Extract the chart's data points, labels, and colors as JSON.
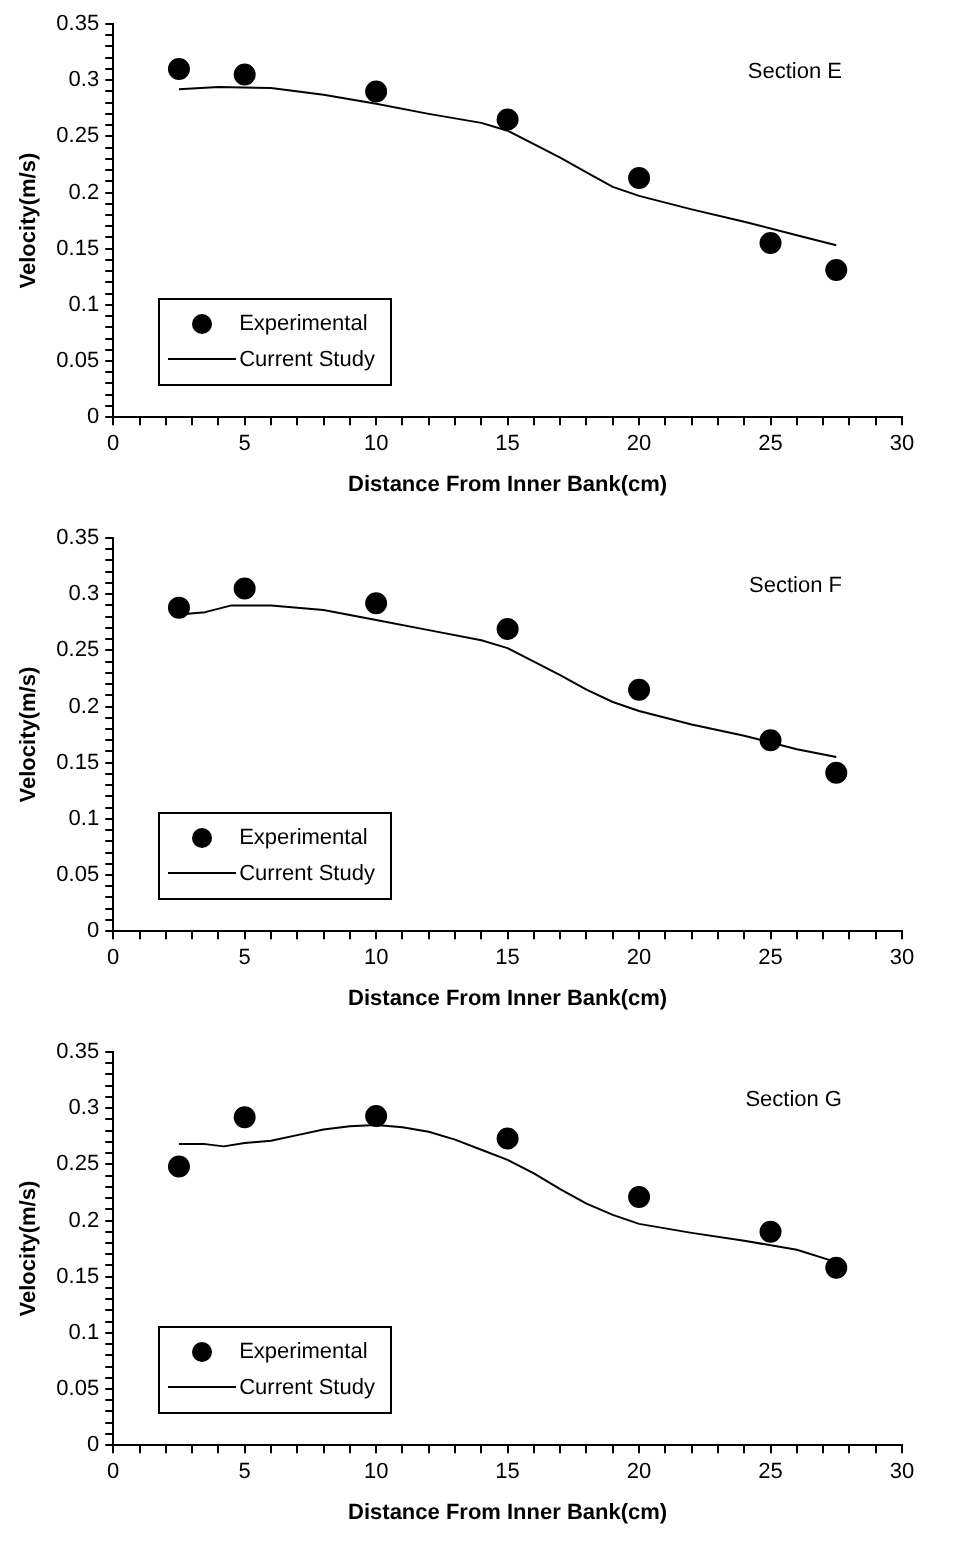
{
  "chart_data": [
    {
      "type": "scatter",
      "xlabel": "Distance From Inner Bank(cm)",
      "ylabel": "Velocity(m/s)",
      "annotations": [
        "Section E"
      ],
      "legend": "bottom left",
      "grid": false,
      "xlim": [
        0,
        30
      ],
      "ylim": [
        0,
        0.35
      ],
      "xticks": [
        0,
        {
          "value": 1,
          "label": null
        },
        {
          "value": 2,
          "label": null
        },
        {
          "value": 3,
          "label": null
        },
        {
          "value": 4,
          "label": null
        },
        5,
        {
          "value": 6,
          "label": null
        },
        {
          "value": 7,
          "label": null
        },
        {
          "value": 8,
          "label": null
        },
        {
          "value": 9,
          "label": null
        },
        10,
        {
          "value": 11,
          "label": null
        },
        {
          "value": 12,
          "label": null
        },
        {
          "value": 13,
          "label": null
        },
        {
          "value": 14,
          "label": null
        },
        15,
        {
          "value": 16,
          "label": null
        },
        {
          "value": 17,
          "label": null
        },
        {
          "value": 18,
          "label": null
        },
        {
          "value": 19,
          "label": null
        },
        20,
        {
          "value": 21,
          "label": null
        },
        {
          "value": 22,
          "label": null
        },
        {
          "value": 23,
          "label": null
        },
        {
          "value": 24,
          "label": null
        },
        25,
        {
          "value": 26,
          "label": null
        },
        {
          "value": 27,
          "label": null
        },
        {
          "value": 28,
          "label": null
        },
        {
          "value": 29,
          "label": null
        },
        30
      ],
      "yticks": [
        0,
        {
          "value": 0.01,
          "label": null
        },
        {
          "value": 0.02,
          "label": null
        },
        {
          "value": 0.03,
          "label": null
        },
        {
          "value": 0.04,
          "label": null
        },
        0.05,
        {
          "value": 0.06,
          "label": null
        },
        {
          "value": 0.07,
          "label": null
        },
        {
          "value": 0.08,
          "label": null
        },
        {
          "value": 0.09,
          "label": null
        },
        0.1,
        {
          "value": 0.11,
          "label": null
        },
        {
          "value": 0.12,
          "label": null
        },
        {
          "value": 0.13,
          "label": null
        },
        {
          "value": 0.14,
          "label": null
        },
        0.15,
        {
          "value": 0.16,
          "label": null
        },
        {
          "value": 0.17,
          "label": null
        },
        {
          "value": 0.18,
          "label": null
        },
        {
          "value": 0.19,
          "label": null
        },
        0.2,
        {
          "value": 0.21,
          "label": null
        },
        {
          "value": 0.22,
          "label": null
        },
        {
          "value": 0.23,
          "label": null
        },
        {
          "value": 0.24,
          "label": null
        },
        0.25,
        {
          "value": 0.26,
          "label": null
        },
        {
          "value": 0.27,
          "label": null
        },
        {
          "value": 0.28,
          "label": null
        },
        {
          "value": 0.29,
          "label": null
        },
        0.3,
        {
          "value": 0.31,
          "label": null
        },
        {
          "value": 0.32,
          "label": null
        },
        {
          "value": 0.33,
          "label": null
        },
        {
          "value": 0.34,
          "label": null
        },
        0.35
      ],
      "series": [
        {
          "name": "Experimental",
          "marker": "circle",
          "color": "#000000",
          "x": [
            2.5,
            5,
            10,
            15,
            20,
            25,
            27.5
          ],
          "values": [
            0.31,
            0.305,
            0.29,
            0.265,
            0.213,
            0.155,
            0.131
          ]
        },
        {
          "name": "Current Study",
          "type": "line",
          "marker": "none",
          "color": "#000000",
          "x": [
            2.5,
            4,
            6,
            8,
            10,
            12,
            14,
            15,
            16,
            17,
            18,
            19,
            20,
            22,
            24,
            26,
            27.5
          ],
          "values": [
            0.292,
            0.294,
            0.293,
            0.287,
            0.279,
            0.27,
            0.262,
            0.255,
            0.243,
            0.231,
            0.218,
            0.205,
            0.197,
            0.185,
            0.174,
            0.162,
            0.153
          ]
        }
      ]
    },
    {
      "type": "scatter",
      "xlabel": "Distance From Inner Bank(cm)",
      "ylabel": "Velocity(m/s)",
      "annotations": [
        "Section F"
      ],
      "legend": "bottom left",
      "grid": false,
      "xlim": [
        0,
        30
      ],
      "ylim": [
        0,
        0.35
      ],
      "xticks": [
        0,
        {
          "value": 1,
          "label": null
        },
        {
          "value": 2,
          "label": null
        },
        {
          "value": 3,
          "label": null
        },
        {
          "value": 4,
          "label": null
        },
        5,
        {
          "value": 6,
          "label": null
        },
        {
          "value": 7,
          "label": null
        },
        {
          "value": 8,
          "label": null
        },
        {
          "value": 9,
          "label": null
        },
        10,
        {
          "value": 11,
          "label": null
        },
        {
          "value": 12,
          "label": null
        },
        {
          "value": 13,
          "label": null
        },
        {
          "value": 14,
          "label": null
        },
        15,
        {
          "value": 16,
          "label": null
        },
        {
          "value": 17,
          "label": null
        },
        {
          "value": 18,
          "label": null
        },
        {
          "value": 19,
          "label": null
        },
        20,
        {
          "value": 21,
          "label": null
        },
        {
          "value": 22,
          "label": null
        },
        {
          "value": 23,
          "label": null
        },
        {
          "value": 24,
          "label": null
        },
        25,
        {
          "value": 26,
          "label": null
        },
        {
          "value": 27,
          "label": null
        },
        {
          "value": 28,
          "label": null
        },
        {
          "value": 29,
          "label": null
        },
        30
      ],
      "yticks": [
        0,
        {
          "value": 0.01,
          "label": null
        },
        {
          "value": 0.02,
          "label": null
        },
        {
          "value": 0.03,
          "label": null
        },
        {
          "value": 0.04,
          "label": null
        },
        0.05,
        {
          "value": 0.06,
          "label": null
        },
        {
          "value": 0.07,
          "label": null
        },
        {
          "value": 0.08,
          "label": null
        },
        {
          "value": 0.09,
          "label": null
        },
        0.1,
        {
          "value": 0.11,
          "label": null
        },
        {
          "value": 0.12,
          "label": null
        },
        {
          "value": 0.13,
          "label": null
        },
        {
          "value": 0.14,
          "label": null
        },
        0.15,
        {
          "value": 0.16,
          "label": null
        },
        {
          "value": 0.17,
          "label": null
        },
        {
          "value": 0.18,
          "label": null
        },
        {
          "value": 0.19,
          "label": null
        },
        0.2,
        {
          "value": 0.21,
          "label": null
        },
        {
          "value": 0.22,
          "label": null
        },
        {
          "value": 0.23,
          "label": null
        },
        {
          "value": 0.24,
          "label": null
        },
        0.25,
        {
          "value": 0.26,
          "label": null
        },
        {
          "value": 0.27,
          "label": null
        },
        {
          "value": 0.28,
          "label": null
        },
        {
          "value": 0.29,
          "label": null
        },
        0.3,
        {
          "value": 0.31,
          "label": null
        },
        {
          "value": 0.32,
          "label": null
        },
        {
          "value": 0.33,
          "label": null
        },
        {
          "value": 0.34,
          "label": null
        },
        0.35
      ],
      "series": [
        {
          "name": "Experimental",
          "marker": "circle",
          "color": "#000000",
          "x": [
            2.5,
            5,
            10,
            15,
            20,
            25,
            27.5
          ],
          "values": [
            0.288,
            0.305,
            0.292,
            0.269,
            0.215,
            0.17,
            0.141
          ]
        },
        {
          "name": "Current Study",
          "type": "line",
          "marker": "none",
          "color": "#000000",
          "x": [
            2.5,
            3.5,
            4.5,
            6,
            8,
            10,
            12,
            14,
            15,
            16,
            17,
            18,
            19,
            20,
            22,
            24,
            26,
            27.5
          ],
          "values": [
            0.282,
            0.284,
            0.29,
            0.29,
            0.286,
            0.277,
            0.268,
            0.259,
            0.252,
            0.24,
            0.228,
            0.215,
            0.204,
            0.196,
            0.184,
            0.174,
            0.162,
            0.155
          ]
        }
      ]
    },
    {
      "type": "scatter",
      "xlabel": "Distance From Inner Bank(cm)",
      "ylabel": "Velocity(m/s)",
      "annotations": [
        "Section G"
      ],
      "legend": "bottom left",
      "grid": false,
      "xlim": [
        0,
        30
      ],
      "ylim": [
        0,
        0.35
      ],
      "xticks": [
        0,
        {
          "value": 1,
          "label": null
        },
        {
          "value": 2,
          "label": null
        },
        {
          "value": 3,
          "label": null
        },
        {
          "value": 4,
          "label": null
        },
        5,
        {
          "value": 6,
          "label": null
        },
        {
          "value": 7,
          "label": null
        },
        {
          "value": 8,
          "label": null
        },
        {
          "value": 9,
          "label": null
        },
        10,
        {
          "value": 11,
          "label": null
        },
        {
          "value": 12,
          "label": null
        },
        {
          "value": 13,
          "label": null
        },
        {
          "value": 14,
          "label": null
        },
        15,
        {
          "value": 16,
          "label": null
        },
        {
          "value": 17,
          "label": null
        },
        {
          "value": 18,
          "label": null
        },
        {
          "value": 19,
          "label": null
        },
        20,
        {
          "value": 21,
          "label": null
        },
        {
          "value": 22,
          "label": null
        },
        {
          "value": 23,
          "label": null
        },
        {
          "value": 24,
          "label": null
        },
        25,
        {
          "value": 26,
          "label": null
        },
        {
          "value": 27,
          "label": null
        },
        {
          "value": 28,
          "label": null
        },
        {
          "value": 29,
          "label": null
        },
        30
      ],
      "yticks": [
        0,
        {
          "value": 0.01,
          "label": null
        },
        {
          "value": 0.02,
          "label": null
        },
        {
          "value": 0.03,
          "label": null
        },
        {
          "value": 0.04,
          "label": null
        },
        0.05,
        {
          "value": 0.06,
          "label": null
        },
        {
          "value": 0.07,
          "label": null
        },
        {
          "value": 0.08,
          "label": null
        },
        {
          "value": 0.09,
          "label": null
        },
        0.1,
        {
          "value": 0.11,
          "label": null
        },
        {
          "value": 0.12,
          "label": null
        },
        {
          "value": 0.13,
          "label": null
        },
        {
          "value": 0.14,
          "label": null
        },
        0.15,
        {
          "value": 0.16,
          "label": null
        },
        {
          "value": 0.17,
          "label": null
        },
        {
          "value": 0.18,
          "label": null
        },
        {
          "value": 0.19,
          "label": null
        },
        0.2,
        {
          "value": 0.21,
          "label": null
        },
        {
          "value": 0.22,
          "label": null
        },
        {
          "value": 0.23,
          "label": null
        },
        {
          "value": 0.24,
          "label": null
        },
        0.25,
        {
          "value": 0.26,
          "label": null
        },
        {
          "value": 0.27,
          "label": null
        },
        {
          "value": 0.28,
          "label": null
        },
        {
          "value": 0.29,
          "label": null
        },
        0.3,
        {
          "value": 0.31,
          "label": null
        },
        {
          "value": 0.32,
          "label": null
        },
        {
          "value": 0.33,
          "label": null
        },
        {
          "value": 0.34,
          "label": null
        },
        0.35
      ],
      "series": [
        {
          "name": "Experimental",
          "marker": "circle",
          "color": "#000000",
          "x": [
            2.5,
            5,
            10,
            15,
            20,
            25,
            27.5
          ],
          "values": [
            0.248,
            0.292,
            0.293,
            0.273,
            0.221,
            0.19,
            0.158
          ]
        },
        {
          "name": "Current Study",
          "type": "line",
          "marker": "none",
          "color": "#000000",
          "x": [
            2.5,
            3.5,
            4.2,
            5,
            6,
            7,
            8,
            9,
            10,
            11,
            12,
            13,
            14,
            15,
            16,
            17,
            18,
            19,
            20,
            22,
            24,
            26,
            27.5
          ],
          "values": [
            0.268,
            0.268,
            0.266,
            0.269,
            0.271,
            0.276,
            0.281,
            0.284,
            0.285,
            0.283,
            0.279,
            0.272,
            0.263,
            0.254,
            0.242,
            0.228,
            0.215,
            0.205,
            0.197,
            0.189,
            0.182,
            0.174,
            0.163
          ]
        }
      ]
    }
  ]
}
